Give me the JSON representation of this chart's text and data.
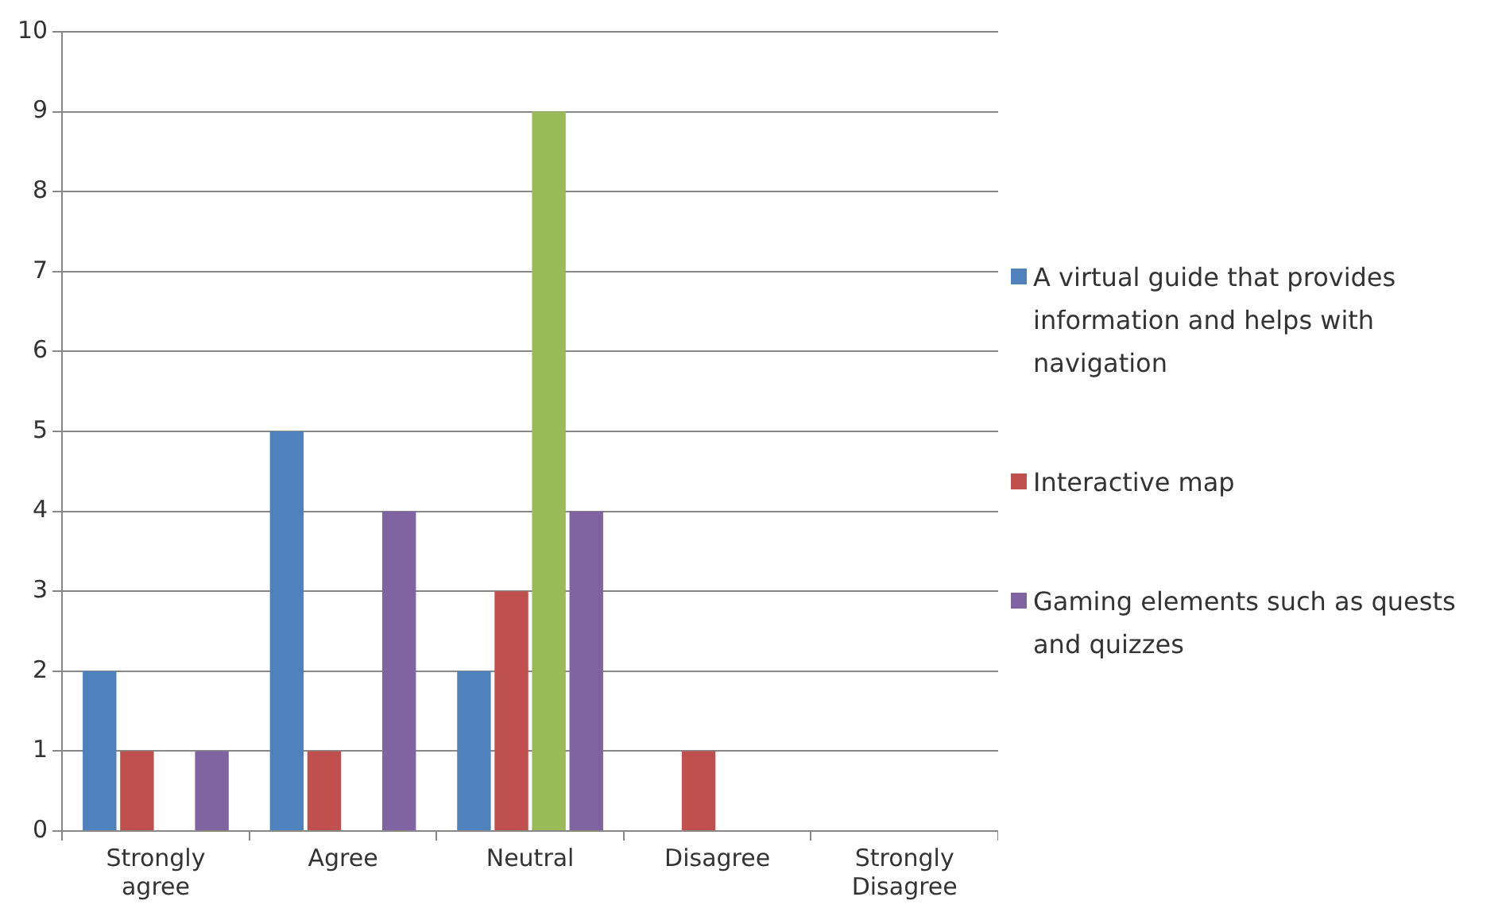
{
  "chart_data": {
    "type": "bar",
    "categories": [
      "Strongly agree",
      "Agree",
      "Neutral",
      "Disagree",
      "Strongly Disagree"
    ],
    "series": [
      {
        "name": "A virtual guide that provides information and helps with navigation",
        "color": "#4f81bd",
        "values": [
          2,
          5,
          2,
          0,
          0
        ]
      },
      {
        "name": "Interactive map",
        "color": "#c0504d",
        "values": [
          1,
          1,
          3,
          1,
          0
        ]
      },
      {
        "color": "#9bbb59",
        "values": [
          0,
          0,
          9,
          0,
          0
        ]
      },
      {
        "name": "Gaming elements such as quests and quizzes",
        "color": "#8064a2",
        "values": [
          1,
          4,
          4,
          0,
          0
        ]
      }
    ],
    "ylim": [
      0,
      10
    ],
    "yticks": [
      0,
      1,
      2,
      3,
      4,
      5,
      6,
      7,
      8,
      9,
      10
    ],
    "grid": "y",
    "legend": "right"
  }
}
